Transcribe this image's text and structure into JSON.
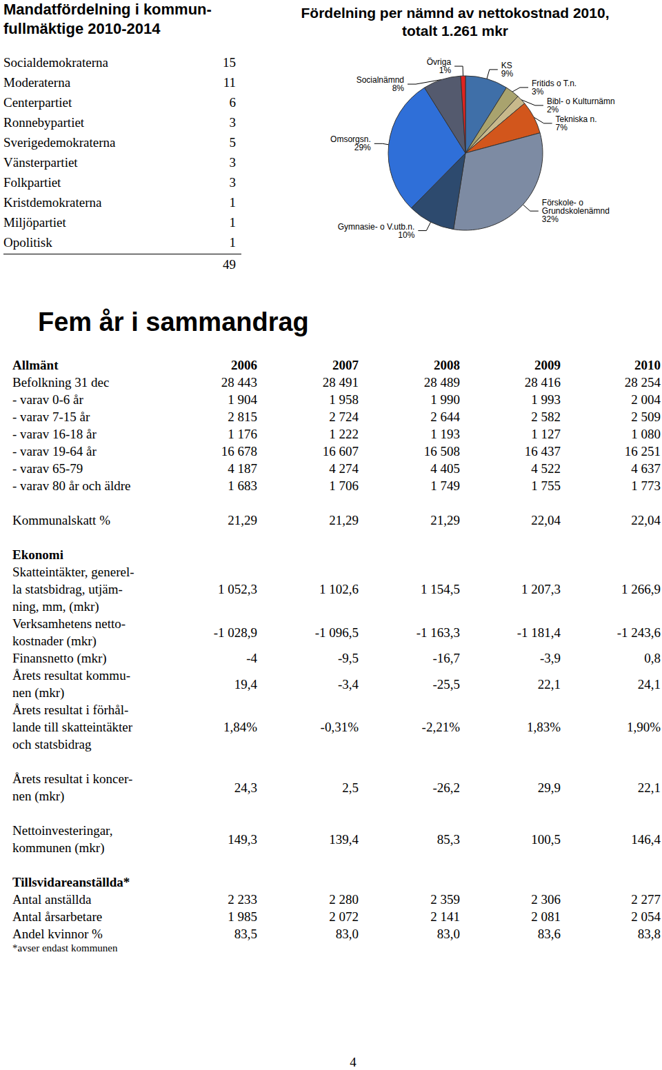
{
  "mandates": {
    "title": [
      "Mandatfördelning i kommun-",
      "fullmäktige 2010-2014"
    ],
    "rows": [
      [
        "Socialdemokraterna",
        15
      ],
      [
        "Moderaterna",
        11
      ],
      [
        "Centerpartiet",
        6
      ],
      [
        "Ronnebypartiet",
        3
      ],
      [
        "Sverigedemokraterna",
        5
      ],
      [
        "Vänsterpartiet",
        3
      ],
      [
        "Folkpartiet",
        3
      ],
      [
        "Kristdemokraterna",
        1
      ],
      [
        "Miljöpartiet",
        1
      ],
      [
        "Opolitisk",
        1
      ]
    ],
    "total": 49
  },
  "chart_data": {
    "type": "pie",
    "title": [
      "Fördelning per nämnd av nettokostnad 2010,",
      "totalt 1.261 mkr"
    ],
    "categories": [
      "KS",
      "Fritids o T.n.",
      "Bibl- o Kulturnämn",
      "Tekniska n.",
      "Förskole- o Grundskolenämnd",
      "Gymnasie- o V.utb.n.",
      "Omsorgsn.",
      "Socialnämnd",
      "Övriga"
    ],
    "values": [
      9,
      3,
      2,
      7,
      32,
      10,
      29,
      8,
      1
    ],
    "value_labels": [
      "9%",
      "3%",
      "2%",
      "7%",
      "32%",
      "10%",
      "29%",
      "8%",
      "1%"
    ],
    "colors": [
      "#3f6fa8",
      "#a9a36e",
      "#c8b98c",
      "#d2561c",
      "#7d8ba3",
      "#2d4a6e",
      "#2f6fd8",
      "#545a6e",
      "#e0231f"
    ],
    "data_labels": true
  },
  "summary": {
    "title": "Fem år i sammandrag",
    "years": [
      "2006",
      "2007",
      "2008",
      "2009",
      "2010"
    ],
    "sections": [
      {
        "heading": "Allmänt",
        "rows": [
          {
            "label": [
              "Befolkning 31 dec"
            ],
            "values": [
              "28 443",
              "28 491",
              "28 489",
              "28 416",
              "28 254"
            ]
          },
          {
            "label": [
              "- varav 0-6 år"
            ],
            "values": [
              "1 904",
              "1 958",
              "1 990",
              "1 993",
              "2 004"
            ]
          },
          {
            "label": [
              "- varav 7-15 år"
            ],
            "values": [
              "2 815",
              "2 724",
              "2 644",
              "2 582",
              "2 509"
            ]
          },
          {
            "label": [
              "- varav 16-18 år"
            ],
            "values": [
              "1 176",
              "1 222",
              "1 193",
              "1 127",
              "1 080"
            ]
          },
          {
            "label": [
              "- varav 19-64 år"
            ],
            "values": [
              "16 678",
              "16 607",
              "16 508",
              "16 437",
              "16 251"
            ]
          },
          {
            "label": [
              "- varav 65-79"
            ],
            "values": [
              "4 187",
              "4 274",
              "4 405",
              "4 522",
              "4 637"
            ]
          },
          {
            "label": [
              "- varav 80 år och äldre"
            ],
            "values": [
              "1 683",
              "1 706",
              "1 749",
              "1 755",
              "1 773"
            ]
          }
        ]
      },
      {
        "rows": [
          {
            "label": [
              "Kommunalskatt %"
            ],
            "values": [
              "21,29",
              "21,29",
              "21,29",
              "22,04",
              "22,04"
            ]
          }
        ]
      },
      {
        "heading": "Ekonomi",
        "rows": [
          {
            "label": [
              "Skatteintäkter, generel-",
              "la statsbidrag, utjäm-",
              "ning, mm, (mkr)"
            ],
            "values": [
              "1 052,3",
              "1 102,6",
              "1 154,5",
              "1 207,3",
              "1 266,9"
            ]
          },
          {
            "label": [
              "Verksamhetens netto-",
              "kostnader (mkr)"
            ],
            "values": [
              "-1 028,9",
              "-1 096,5",
              "-1 163,3",
              "-1 181,4",
              "-1 243,6"
            ]
          },
          {
            "label": [
              "Finansnetto (mkr)"
            ],
            "values": [
              "-4",
              "-9,5",
              "-16,7",
              "-3,9",
              "0,8"
            ]
          },
          {
            "label": [
              "Årets resultat kommu-",
              "nen (mkr)"
            ],
            "values": [
              "19,4",
              "-3,4",
              "-25,5",
              "22,1",
              "24,1"
            ]
          },
          {
            "label": [
              "Årets resultat i förhål-",
              "lande till skatteintäkter",
              "och statsbidrag"
            ],
            "values": [
              "1,84%",
              "-0,31%",
              "-2,21%",
              "1,83%",
              "1,90%"
            ]
          }
        ]
      },
      {
        "rows": [
          {
            "label": [
              "Årets resultat i koncer-",
              "nen (mkr)"
            ],
            "values": [
              "24,3",
              "2,5",
              "-26,2",
              "29,9",
              "22,1"
            ]
          }
        ]
      },
      {
        "rows": [
          {
            "label": [
              "Nettoinvesteringar,",
              "kommunen (mkr)"
            ],
            "values": [
              "149,3",
              "139,4",
              "85,3",
              "100,5",
              "146,4"
            ]
          }
        ]
      },
      {
        "heading": "Tillsvidareanställda*",
        "rows": [
          {
            "label": [
              "Antal anställda"
            ],
            "values": [
              "2 233",
              "2 280",
              "2 359",
              "2 306",
              "2 277"
            ]
          },
          {
            "label": [
              "Antal årsarbetare"
            ],
            "values": [
              "1 985",
              "2 072",
              "2 141",
              "2 081",
              "2 054"
            ]
          },
          {
            "label": [
              "Andel kvinnor %"
            ],
            "values": [
              "83,5",
              "83,0",
              "83,0",
              "83,6",
              "83,8"
            ]
          }
        ],
        "footnote": "*avser endast kommunen"
      }
    ]
  },
  "page_number": "4"
}
